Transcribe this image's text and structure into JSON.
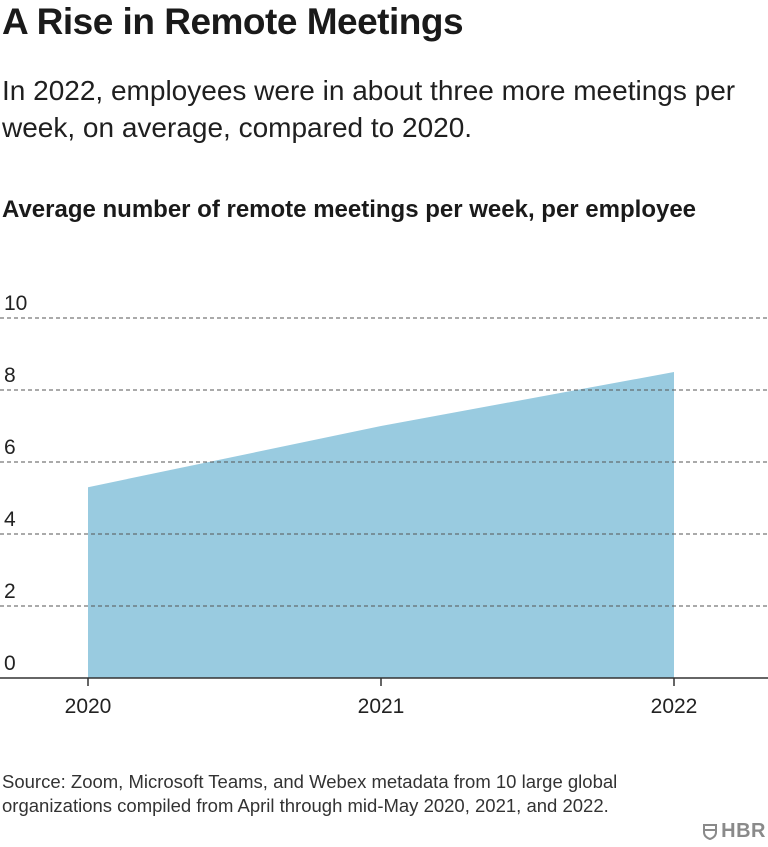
{
  "header": {
    "title": "A Rise in Remote Meetings",
    "subtitle": "In 2022, employees were in about three more meetings per week, on average, compared to 2020."
  },
  "chart_data": {
    "type": "area",
    "title": "Average number of remote meetings per week, per employee",
    "xlabel": "",
    "ylabel": "",
    "categories": [
      "2020",
      "2021",
      "2022"
    ],
    "values": [
      5.3,
      7.0,
      8.5
    ],
    "ylim": [
      0,
      10
    ],
    "yticks": [
      "0",
      "2",
      "4",
      "6",
      "8",
      "10"
    ],
    "grid": true,
    "fill_color": "#99cbe0",
    "axis_color": "#333333"
  },
  "footer": {
    "source": "Source: Zoom, Microsoft Teams, and Webex metadata from 10 large global organizations compiled from April through mid-May 2020, 2021, and 2022.",
    "brand": "HBR"
  }
}
